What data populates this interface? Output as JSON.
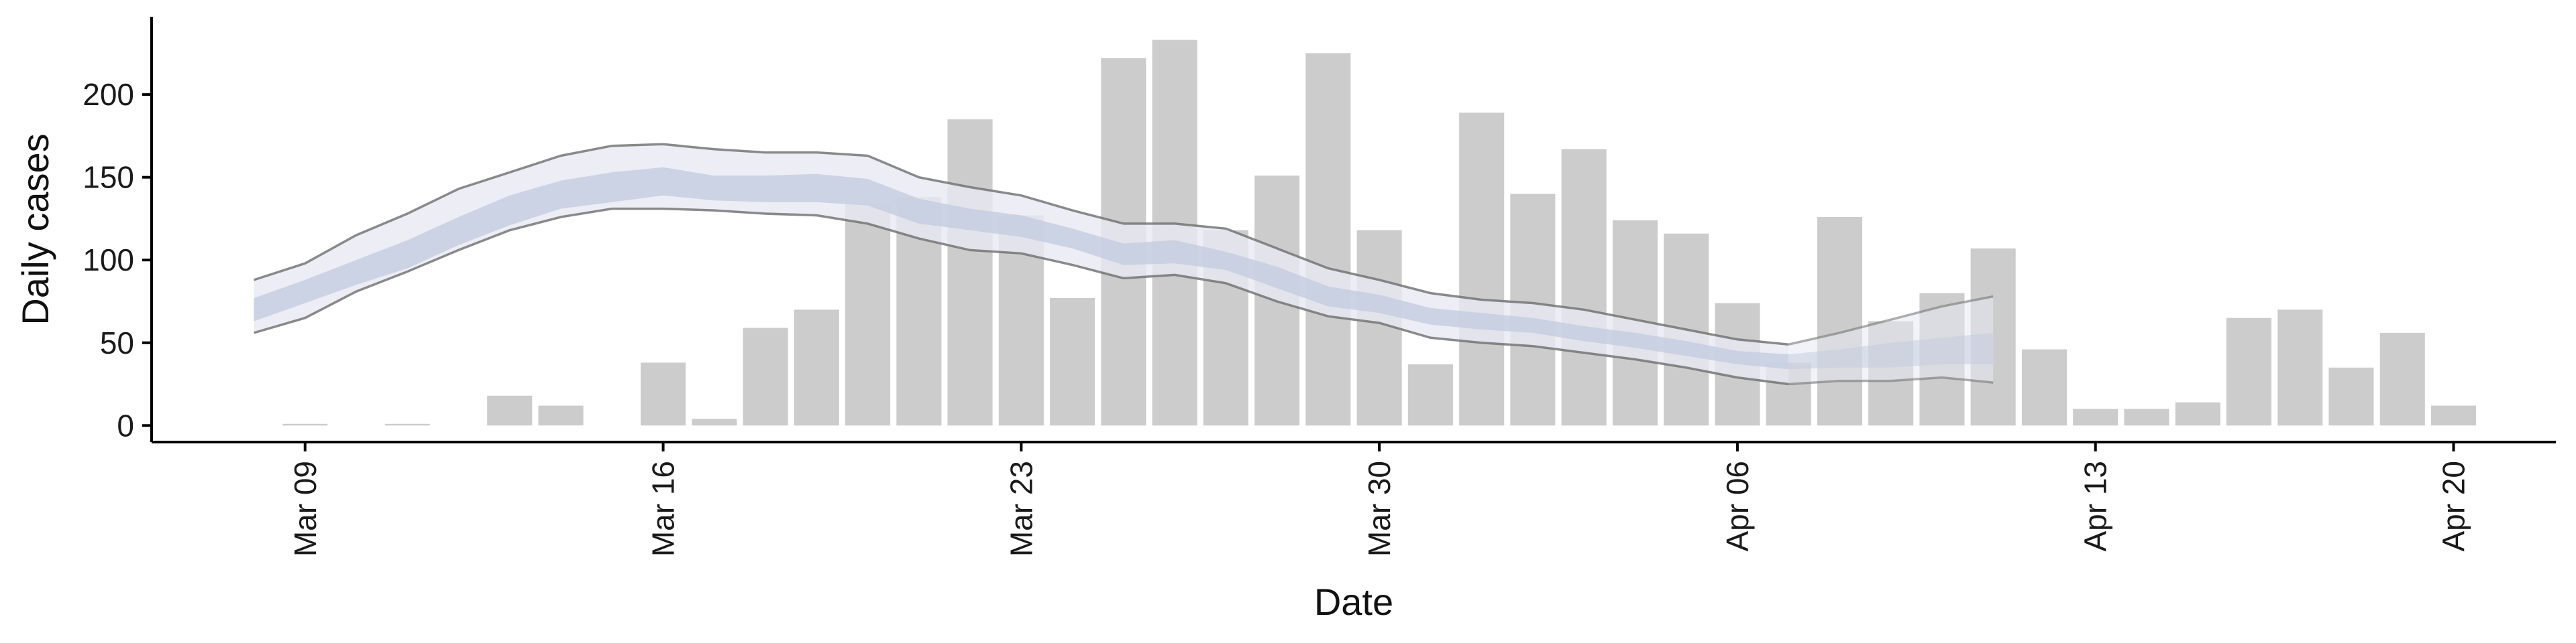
{
  "colors": {
    "bars": "#cccccc",
    "outer_band": "#e7e9f2",
    "inner_band": "#c4cce0",
    "ci_lines": "#6e6e6e",
    "axis": "#000000"
  },
  "chart_data": {
    "type": "bar",
    "title": "",
    "xlabel": "Date",
    "ylabel": "Daily cases",
    "x_range": [
      "2020-03-06",
      "2020-04-22"
    ],
    "ylim": [
      -10,
      247
    ],
    "grid": false,
    "legend": "none",
    "x_ticks": [
      {
        "date": "2020-03-09",
        "label": "Mar 09"
      },
      {
        "date": "2020-03-16",
        "label": "Mar 16"
      },
      {
        "date": "2020-03-23",
        "label": "Mar 23"
      },
      {
        "date": "2020-03-30",
        "label": "Mar 30"
      },
      {
        "date": "2020-04-06",
        "label": "Apr 06"
      },
      {
        "date": "2020-04-13",
        "label": "Apr 13"
      },
      {
        "date": "2020-04-20",
        "label": "Apr 20"
      }
    ],
    "y_ticks": [
      0,
      50,
      100,
      150,
      200
    ],
    "bars": {
      "name": "Daily cases",
      "x": [
        "2020-03-09",
        "2020-03-10",
        "2020-03-11",
        "2020-03-12",
        "2020-03-13",
        "2020-03-14",
        "2020-03-15",
        "2020-03-16",
        "2020-03-17",
        "2020-03-18",
        "2020-03-19",
        "2020-03-20",
        "2020-03-21",
        "2020-03-22",
        "2020-03-23",
        "2020-03-24",
        "2020-03-25",
        "2020-03-26",
        "2020-03-27",
        "2020-03-28",
        "2020-03-29",
        "2020-03-30",
        "2020-03-31",
        "2020-04-01",
        "2020-04-02",
        "2020-04-03",
        "2020-04-04",
        "2020-04-05",
        "2020-04-06",
        "2020-04-07",
        "2020-04-08",
        "2020-04-09",
        "2020-04-10",
        "2020-04-11",
        "2020-04-12",
        "2020-04-13",
        "2020-04-14",
        "2020-04-15",
        "2020-04-16",
        "2020-04-17",
        "2020-04-18",
        "2020-04-19",
        "2020-04-20"
      ],
      "values": [
        1,
        0,
        1,
        0,
        18,
        12,
        0,
        38,
        4,
        59,
        70,
        134,
        138,
        185,
        127,
        77,
        222,
        233,
        118,
        151,
        225,
        118,
        37,
        189,
        140,
        167,
        124,
        116,
        74,
        38,
        126,
        63,
        80,
        107,
        46,
        10,
        10,
        14,
        65,
        70,
        35,
        56,
        12
      ]
    },
    "nowcast": {
      "x": [
        "2020-03-08",
        "2020-03-09",
        "2020-03-10",
        "2020-03-11",
        "2020-03-12",
        "2020-03-13",
        "2020-03-14",
        "2020-03-15",
        "2020-03-16",
        "2020-03-17",
        "2020-03-18",
        "2020-03-19",
        "2020-03-20",
        "2020-03-21",
        "2020-03-22",
        "2020-03-23",
        "2020-03-24",
        "2020-03-25",
        "2020-03-26",
        "2020-03-27",
        "2020-03-28",
        "2020-03-29",
        "2020-03-30",
        "2020-03-31",
        "2020-04-01",
        "2020-04-02",
        "2020-04-03",
        "2020-04-04",
        "2020-04-05",
        "2020-04-06",
        "2020-04-07"
      ],
      "outer_upper": [
        88,
        98,
        115,
        128,
        143,
        153,
        163,
        169,
        170,
        167,
        165,
        165,
        163,
        150,
        144,
        139,
        130,
        122,
        122,
        119,
        107,
        95,
        88,
        80,
        76,
        74,
        70,
        64,
        58,
        52,
        49
      ],
      "inner_upper": [
        77,
        88,
        100,
        112,
        126,
        139,
        148,
        153,
        156,
        151,
        151,
        152,
        149,
        137,
        131,
        127,
        119,
        110,
        112,
        105,
        96,
        84,
        79,
        71,
        68,
        65,
        60,
        56,
        51,
        45,
        43
      ],
      "inner_lower": [
        63,
        74,
        85,
        95,
        109,
        121,
        131,
        135,
        139,
        136,
        135,
        135,
        133,
        122,
        118,
        114,
        107,
        97,
        98,
        94,
        83,
        72,
        68,
        61,
        58,
        56,
        51,
        47,
        42,
        37,
        34
      ],
      "outer_lower": [
        56,
        65,
        81,
        93,
        106,
        118,
        126,
        131,
        131,
        130,
        128,
        127,
        122,
        113,
        106,
        104,
        97,
        89,
        91,
        86,
        75,
        66,
        62,
        53,
        50,
        48,
        44,
        40,
        35,
        29,
        25
      ]
    },
    "forecast": {
      "x": [
        "2020-04-07",
        "2020-04-08",
        "2020-04-09",
        "2020-04-10",
        "2020-04-11"
      ],
      "outer_upper": [
        49,
        56,
        64,
        72,
        78
      ],
      "inner_upper": [
        43,
        46,
        50,
        53,
        56
      ],
      "inner_lower": [
        34,
        35,
        35,
        37,
        37
      ],
      "outer_lower": [
        25,
        27,
        27,
        29,
        26
      ]
    }
  }
}
